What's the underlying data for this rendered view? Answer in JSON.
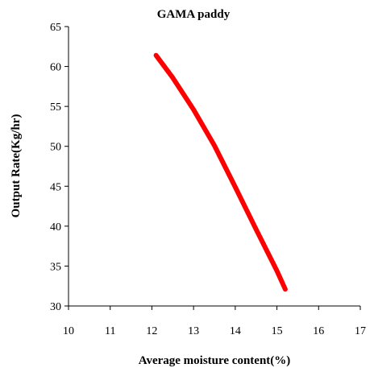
{
  "chart_data": {
    "type": "line",
    "title": "GAMA paddy",
    "xlabel": "Average moisture content(%)",
    "ylabel": "Output Rate(Kg/hr)",
    "xlim": [
      10,
      17
    ],
    "ylim": [
      30,
      65
    ],
    "xticks": [
      10,
      11,
      12,
      13,
      14,
      15,
      16,
      17
    ],
    "yticks": [
      30,
      35,
      40,
      45,
      50,
      55,
      60,
      65
    ],
    "grid": false,
    "series": [
      {
        "color": "#ff0000",
        "x": [
          12.1,
          12.5,
          13.0,
          13.5,
          14.0,
          14.5,
          15.0,
          15.2
        ],
        "y": [
          61.4,
          58.6,
          54.6,
          50.1,
          44.9,
          39.6,
          34.4,
          32.1
        ]
      }
    ]
  }
}
